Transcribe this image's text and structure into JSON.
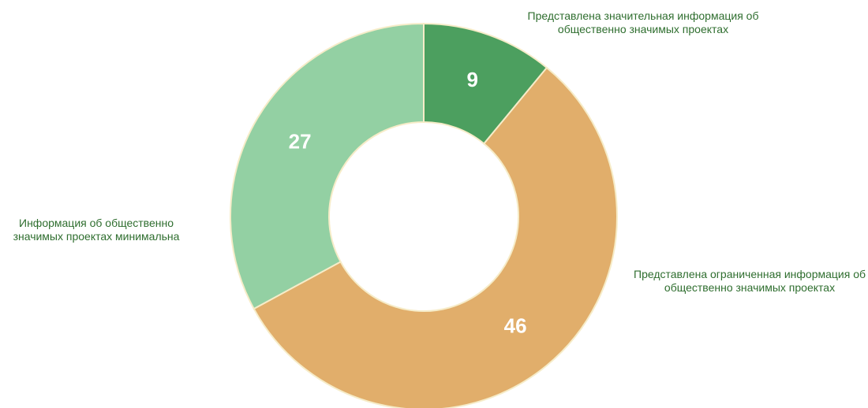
{
  "chart_data": {
    "type": "donut",
    "categories": [
      "Представлена значительная информация об общественно значимых проектах",
      "Представлена ограниченная информация об общественно значимых проектах",
      "Информация об общественно значимых проектах минимальна"
    ],
    "values": [
      9,
      46,
      27
    ],
    "colors": [
      "#4c9f5f",
      "#e1ae6b",
      "#93d0a3"
    ]
  }
}
